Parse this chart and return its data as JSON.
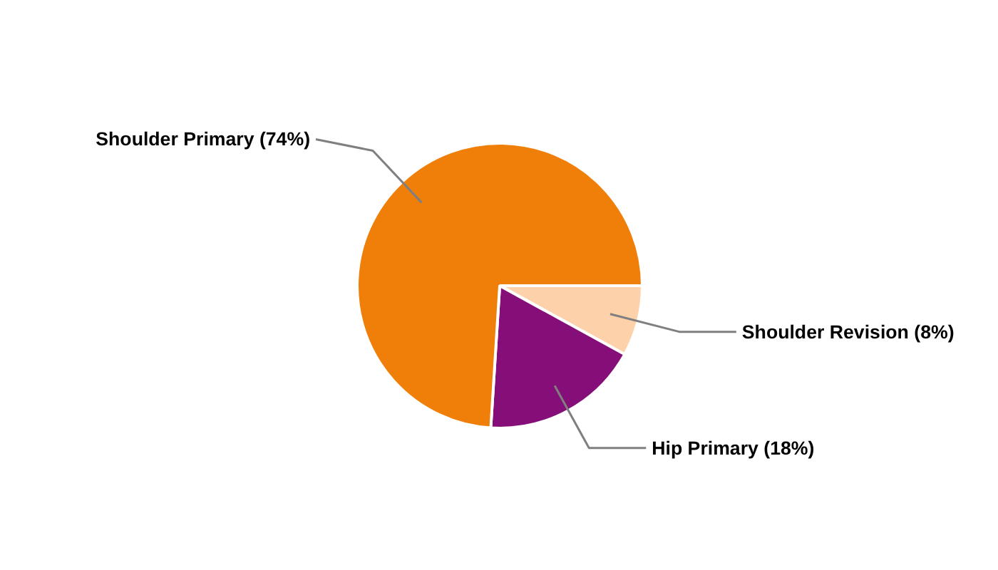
{
  "chart_data": {
    "type": "pie",
    "categories": [
      "Shoulder Revision",
      "Hip Primary",
      "Shoulder Primary"
    ],
    "values": [
      8,
      18,
      74
    ],
    "colors": [
      "#fdd2ab",
      "#850e79",
      "#f07f0a"
    ],
    "value_labels": [
      "(8%)",
      "(18%)",
      "(74%)"
    ]
  }
}
